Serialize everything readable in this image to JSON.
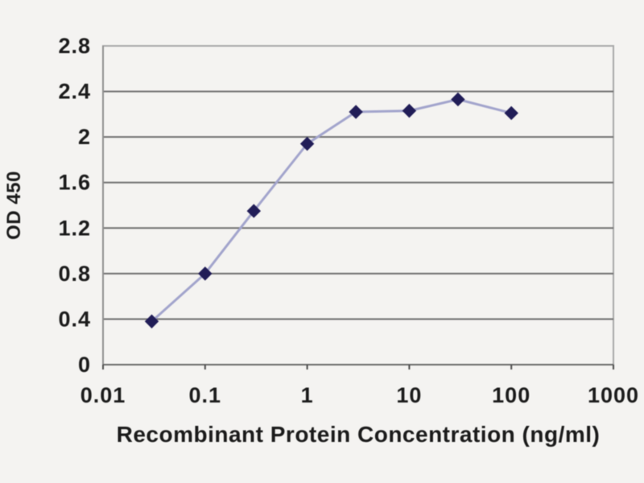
{
  "chart_data": {
    "type": "line",
    "title": "",
    "xlabel": "Recombinant Protein Concentration (ng/ml)",
    "ylabel": "OD 450",
    "x_scale": "log",
    "xlim": [
      0.01,
      1000
    ],
    "ylim": [
      0,
      2.8
    ],
    "x_tick_values": [
      0.01,
      0.1,
      1,
      10,
      100,
      1000
    ],
    "x_tick_labels": [
      "0.01",
      "0.1",
      "1",
      "10",
      "100",
      "1000"
    ],
    "y_tick_values": [
      0,
      0.4,
      0.8,
      1.2,
      1.6,
      2,
      2.4,
      2.8
    ],
    "y_tick_labels": [
      "0",
      "0.4",
      "0.8",
      "1.2",
      "1.6",
      "2",
      "2.4",
      "2.8"
    ],
    "grid": "horizontal-only",
    "legend": "none",
    "series": [
      {
        "name": "OD450",
        "marker": "diamond",
        "x": [
          0.03,
          0.1,
          0.3,
          1,
          3,
          10,
          30,
          100
        ],
        "y": [
          0.38,
          0.8,
          1.35,
          1.94,
          2.22,
          2.23,
          2.33,
          2.21
        ]
      }
    ],
    "colors": {
      "line": "#a2a4cc",
      "marker": "#211d57",
      "gridline": "#6f6f6f",
      "frame": "#a9a9a9",
      "axis": "#6b6b6b",
      "tick": "#4d4d4d",
      "text": "#1b1b1b",
      "background": "#f4f3f1"
    }
  }
}
